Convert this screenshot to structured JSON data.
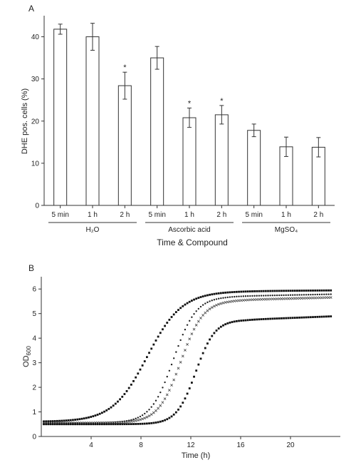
{
  "chart_data": [
    {
      "type": "bar",
      "panel_label": "A",
      "ylabel": "DHE pos. cells (%)",
      "xlabel": "Time & Compound",
      "ylim": [
        0,
        45
      ],
      "yticks": [
        0,
        10,
        20,
        30,
        40
      ],
      "grid": false,
      "groups": [
        {
          "label": "H₂O",
          "categories": [
            "5 min",
            "1 h",
            "2 h"
          ],
          "values": [
            41.8,
            40.0,
            28.4
          ],
          "errors": [
            1.2,
            3.2,
            3.2
          ],
          "significance": [
            "",
            "",
            "*"
          ]
        },
        {
          "label": "Ascorbic acid",
          "categories": [
            "5 min",
            "1 h",
            "2 h"
          ],
          "values": [
            35.0,
            20.8,
            21.5
          ],
          "errors": [
            2.7,
            2.3,
            2.2
          ],
          "significance": [
            "",
            "*",
            "*"
          ]
        },
        {
          "label": "MgSO₄",
          "categories": [
            "5 min",
            "1 h",
            "2 h"
          ],
          "values": [
            17.8,
            13.9,
            13.8
          ],
          "errors": [
            1.5,
            2.3,
            2.3
          ],
          "significance": [
            "",
            "",
            ""
          ]
        }
      ]
    },
    {
      "type": "scatter",
      "panel_label": "B",
      "ylabel": "OD600",
      "ylabel_main": "OD",
      "ylabel_sub": "600",
      "xlabel": "Time (h)",
      "xlim": [
        0,
        24
      ],
      "ylim": [
        0,
        6.5
      ],
      "xticks": [
        4,
        8,
        12,
        16,
        20
      ],
      "yticks": [
        0,
        1,
        2,
        3,
        4,
        5,
        6
      ],
      "grid": false,
      "series": [
        {
          "marker": "square",
          "params": {
            "y0": 0.6,
            "ymax": 5.9,
            "t50": 8.5,
            "k": 0.72,
            "tail": 0.004
          }
        },
        {
          "marker": "dot",
          "params": {
            "y0": 0.55,
            "ymax": 5.7,
            "t50": 10.6,
            "k": 1.1,
            "tail": 0.01
          }
        },
        {
          "marker": "cross",
          "params": {
            "y0": 0.55,
            "ymax": 5.55,
            "t50": 11.2,
            "k": 1.1,
            "tail": 0.013
          }
        },
        {
          "marker": "square",
          "params": {
            "y0": 0.5,
            "ymax": 4.75,
            "t50": 12.4,
            "k": 1.3,
            "tail": 0.02
          }
        }
      ]
    }
  ]
}
